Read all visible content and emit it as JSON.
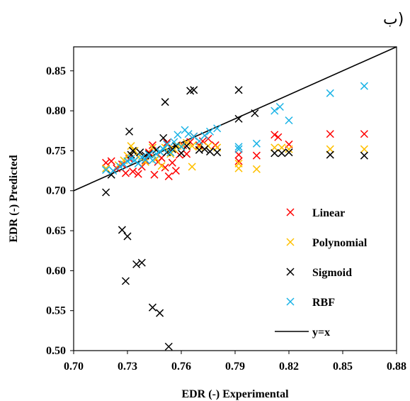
{
  "panel_label": "ب)",
  "chart_data": {
    "type": "scatter",
    "title": "",
    "xlabel": "EDR (-) Experimental",
    "ylabel": "EDR (-) Predicted",
    "xlim": [
      0.7,
      0.88
    ],
    "ylim": [
      0.5,
      0.88
    ],
    "xticks": [
      "0.70",
      "0.73",
      "0.76",
      "0.79",
      "0.82",
      "0.85",
      "0.88"
    ],
    "yticks": [
      "0.50",
      "0.55",
      "0.60",
      "0.65",
      "0.70",
      "0.75",
      "0.80",
      "0.85"
    ],
    "grid": false,
    "legend_position": "bottom-right",
    "reference_line": {
      "name": "y=x",
      "points": [
        [
          0.7,
          0.7
        ],
        [
          0.88,
          0.88
        ]
      ],
      "color": "#000000"
    },
    "series": [
      {
        "name": "Linear",
        "color": "#ff0000",
        "marker": "x",
        "points": [
          [
            0.718,
            0.735
          ],
          [
            0.721,
            0.737
          ],
          [
            0.724,
            0.728
          ],
          [
            0.727,
            0.733
          ],
          [
            0.729,
            0.722
          ],
          [
            0.731,
            0.74
          ],
          [
            0.733,
            0.724
          ],
          [
            0.736,
            0.721
          ],
          [
            0.738,
            0.73
          ],
          [
            0.74,
            0.738
          ],
          [
            0.742,
            0.748
          ],
          [
            0.744,
            0.757
          ],
          [
            0.745,
            0.72
          ],
          [
            0.747,
            0.736
          ],
          [
            0.749,
            0.741
          ],
          [
            0.751,
            0.729
          ],
          [
            0.752,
            0.76
          ],
          [
            0.753,
            0.718
          ],
          [
            0.755,
            0.735
          ],
          [
            0.757,
            0.725
          ],
          [
            0.759,
            0.745
          ],
          [
            0.761,
            0.757
          ],
          [
            0.763,
            0.746
          ],
          [
            0.765,
            0.761
          ],
          [
            0.767,
            0.768
          ],
          [
            0.77,
            0.757
          ],
          [
            0.772,
            0.762
          ],
          [
            0.775,
            0.765
          ],
          [
            0.779,
            0.757
          ],
          [
            0.792,
            0.737
          ],
          [
            0.792,
            0.745
          ],
          [
            0.802,
            0.744
          ],
          [
            0.812,
            0.77
          ],
          [
            0.814,
            0.767
          ],
          [
            0.82,
            0.758
          ],
          [
            0.843,
            0.771
          ],
          [
            0.862,
            0.771
          ]
        ]
      },
      {
        "name": "Polynomial",
        "color": "#ffc000",
        "marker": "x",
        "points": [
          [
            0.718,
            0.728
          ],
          [
            0.725,
            0.732
          ],
          [
            0.728,
            0.738
          ],
          [
            0.73,
            0.744
          ],
          [
            0.732,
            0.756
          ],
          [
            0.734,
            0.75
          ],
          [
            0.736,
            0.742
          ],
          [
            0.74,
            0.736
          ],
          [
            0.744,
            0.754
          ],
          [
            0.746,
            0.74
          ],
          [
            0.749,
            0.731
          ],
          [
            0.751,
            0.754
          ],
          [
            0.754,
            0.746
          ],
          [
            0.756,
            0.752
          ],
          [
            0.758,
            0.756
          ],
          [
            0.76,
            0.756
          ],
          [
            0.763,
            0.76
          ],
          [
            0.766,
            0.73
          ],
          [
            0.766,
            0.756
          ],
          [
            0.77,
            0.755
          ],
          [
            0.775,
            0.756
          ],
          [
            0.78,
            0.754
          ],
          [
            0.792,
            0.734
          ],
          [
            0.792,
            0.728
          ],
          [
            0.802,
            0.727
          ],
          [
            0.812,
            0.754
          ],
          [
            0.816,
            0.754
          ],
          [
            0.82,
            0.752
          ],
          [
            0.843,
            0.752
          ],
          [
            0.862,
            0.752
          ]
        ]
      },
      {
        "name": "Sigmoid",
        "color": "#000000",
        "marker": "x",
        "points": [
          [
            0.718,
            0.698
          ],
          [
            0.721,
            0.72
          ],
          [
            0.727,
            0.651
          ],
          [
            0.729,
            0.587
          ],
          [
            0.73,
            0.643
          ],
          [
            0.731,
            0.774
          ],
          [
            0.732,
            0.745
          ],
          [
            0.733,
            0.75
          ],
          [
            0.735,
            0.608
          ],
          [
            0.737,
            0.748
          ],
          [
            0.738,
            0.61
          ],
          [
            0.74,
            0.744
          ],
          [
            0.742,
            0.746
          ],
          [
            0.744,
            0.554
          ],
          [
            0.746,
            0.751
          ],
          [
            0.748,
            0.547
          ],
          [
            0.75,
            0.766
          ],
          [
            0.751,
            0.811
          ],
          [
            0.752,
            0.748
          ],
          [
            0.753,
            0.505
          ],
          [
            0.755,
            0.752
          ],
          [
            0.757,
            0.756
          ],
          [
            0.76,
            0.747
          ],
          [
            0.763,
            0.756
          ],
          [
            0.765,
            0.825
          ],
          [
            0.767,
            0.826
          ],
          [
            0.77,
            0.751
          ],
          [
            0.773,
            0.752
          ],
          [
            0.776,
            0.749
          ],
          [
            0.78,
            0.748
          ],
          [
            0.792,
            0.826
          ],
          [
            0.792,
            0.79
          ],
          [
            0.801,
            0.797
          ],
          [
            0.812,
            0.747
          ],
          [
            0.816,
            0.747
          ],
          [
            0.82,
            0.748
          ],
          [
            0.843,
            0.745
          ],
          [
            0.862,
            0.744
          ]
        ]
      },
      {
        "name": "RBF",
        "color": "#1ab3e6",
        "marker": "x",
        "points": [
          [
            0.718,
            0.726
          ],
          [
            0.722,
            0.725
          ],
          [
            0.726,
            0.73
          ],
          [
            0.728,
            0.733
          ],
          [
            0.73,
            0.737
          ],
          [
            0.732,
            0.74
          ],
          [
            0.734,
            0.738
          ],
          [
            0.736,
            0.734
          ],
          [
            0.738,
            0.742
          ],
          [
            0.74,
            0.739
          ],
          [
            0.742,
            0.745
          ],
          [
            0.744,
            0.738
          ],
          [
            0.746,
            0.746
          ],
          [
            0.748,
            0.749
          ],
          [
            0.75,
            0.752
          ],
          [
            0.752,
            0.758
          ],
          [
            0.754,
            0.748
          ],
          [
            0.756,
            0.761
          ],
          [
            0.758,
            0.77
          ],
          [
            0.76,
            0.755
          ],
          [
            0.762,
            0.776
          ],
          [
            0.764,
            0.771
          ],
          [
            0.767,
            0.768
          ],
          [
            0.77,
            0.762
          ],
          [
            0.773,
            0.769
          ],
          [
            0.776,
            0.774
          ],
          [
            0.78,
            0.778
          ],
          [
            0.792,
            0.752
          ],
          [
            0.792,
            0.755
          ],
          [
            0.802,
            0.759
          ],
          [
            0.812,
            0.8
          ],
          [
            0.815,
            0.805
          ],
          [
            0.82,
            0.788
          ],
          [
            0.843,
            0.822
          ],
          [
            0.862,
            0.831
          ]
        ]
      }
    ]
  }
}
